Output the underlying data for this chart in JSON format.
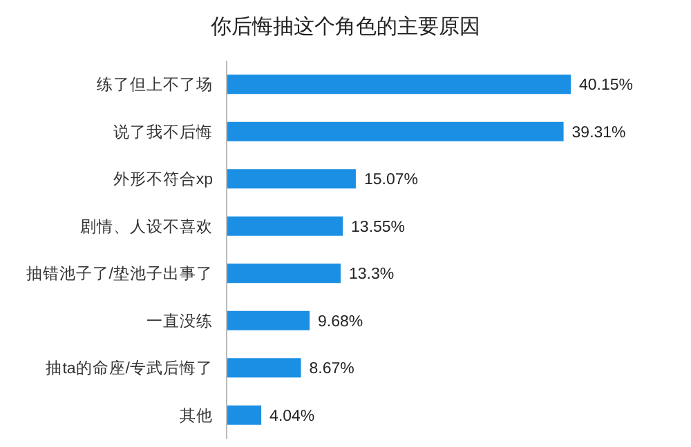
{
  "chart_data": {
    "type": "bar",
    "orientation": "horizontal",
    "title": "你后悔抽这个角色的主要原因",
    "categories": [
      "练了但上不了场",
      "说了我不后悔",
      "外形不符合xp",
      "剧情、人设不喜欢",
      "抽错池子了/垫池子出事了",
      "一直没练",
      "抽ta的命座/专武后悔了",
      "其他"
    ],
    "values": [
      40.15,
      39.31,
      15.07,
      13.55,
      13.3,
      9.68,
      8.67,
      4.04
    ],
    "value_labels": [
      "40.15%",
      "39.31%",
      "15.07%",
      "13.55%",
      "13.3%",
      "9.68%",
      "8.67%",
      "4.04%"
    ],
    "color": "#1a8fe3"
  }
}
